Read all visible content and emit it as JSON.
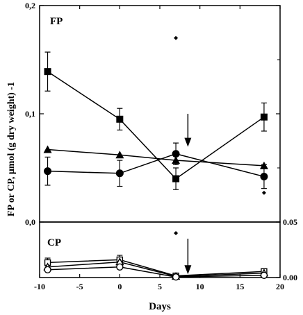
{
  "chart_data": [
    {
      "type": "line",
      "panel": "FP",
      "panel_label": "FP",
      "xlabel": "Days",
      "ylabel": "FP or CP, µmol (g dry weight) -1",
      "xlim": [
        -10,
        20
      ],
      "ylim": [
        0,
        0.2
      ],
      "y_ticks": [
        "0,0",
        "0,1",
        "0,2"
      ],
      "y_tick_values": [
        0,
        0.1,
        0.2
      ],
      "x": [
        -9,
        0,
        7,
        18
      ],
      "series": [
        {
          "marker": "square",
          "values": [
            0.139,
            0.095,
            0.04,
            0.097
          ],
          "errors": [
            0.018,
            0.01,
            0.01,
            0.013
          ]
        },
        {
          "marker": "triangle",
          "values": [
            0.067,
            0.062,
            0.057,
            0.052
          ],
          "errors": [
            0,
            0,
            0,
            0
          ]
        },
        {
          "marker": "circle",
          "values": [
            0.047,
            0.045,
            0.063,
            0.042
          ],
          "errors": [
            0.013,
            0.012,
            0.01,
            0.011
          ]
        }
      ],
      "extra_points": [
        {
          "marker": "diamond",
          "x": 7,
          "y": 0.17
        },
        {
          "marker": "diamond",
          "x": 18,
          "y": 0.027
        }
      ],
      "arrow": {
        "x": 8.5,
        "y_from": 0.1,
        "y_to": 0.072
      }
    },
    {
      "type": "line",
      "panel": "CP",
      "panel_label": "CP",
      "xlim": [
        -10,
        20
      ],
      "ylim": [
        0,
        0.05
      ],
      "y_ticks_right": [
        "0.05",
        "0.00"
      ],
      "y_tick_values": [
        0.05,
        0
      ],
      "x_ticks": [
        "-10",
        "-5",
        "0",
        "5",
        "10",
        "15",
        "20"
      ],
      "x_tick_values": [
        -10,
        -5,
        0,
        5,
        10,
        15,
        20
      ],
      "x": [
        -9,
        0,
        7,
        18
      ],
      "series": [
        {
          "marker": "open-square",
          "values": [
            0.0135,
            0.016,
            0.0015,
            0.0055
          ],
          "errors": [
            0.004,
            0.004,
            0.001,
            0.002
          ]
        },
        {
          "marker": "open-triangle",
          "values": [
            0.0095,
            0.014,
            0.001,
            0.004
          ],
          "errors": [
            0,
            0,
            0,
            0
          ]
        },
        {
          "marker": "open-circle",
          "values": [
            0.007,
            0.0095,
            0.0005,
            0.002
          ],
          "errors": [
            0,
            0,
            0,
            0
          ]
        }
      ],
      "extra_points": [
        {
          "marker": "diamond",
          "x": 7,
          "y": 0.04
        }
      ],
      "arrow": {
        "x": 8.5,
        "y_from": 0.035,
        "y_to": 0.0055
      }
    }
  ]
}
